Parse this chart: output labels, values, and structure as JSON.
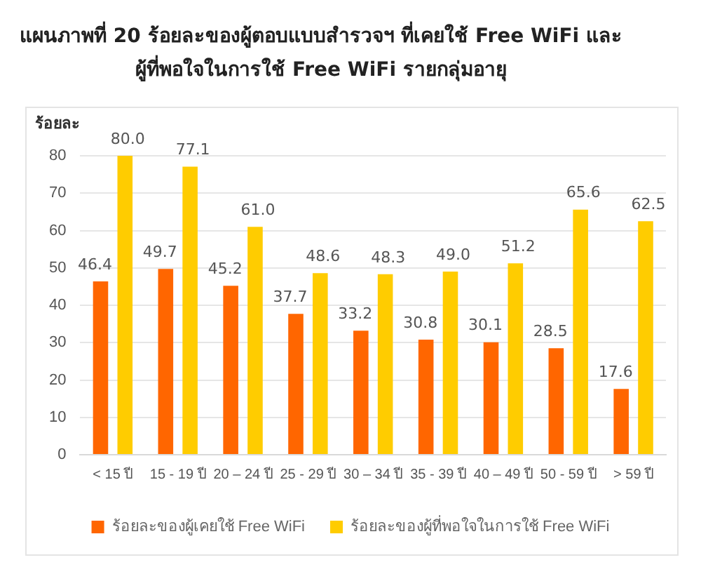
{
  "chart_data": {
    "type": "bar",
    "title": "แผนภาพที่  20 ร้อยละของผู้ตอบแบบสำรวจฯ ที่เคยใช้ Free WiFi และผู้ที่พอใจในการใช้ Free WiFi รายกลุ่มอายุ",
    "ylabel": "ร้อยละ",
    "categories": [
      "< 15 ปี",
      "15 - 19 ปี",
      "20 – 24 ปี",
      "25 - 29 ปี",
      "30 – 34 ปี",
      "35 - 39 ปี",
      "40 – 49 ปี",
      "50 - 59 ปี",
      "> 59 ปี"
    ],
    "series": [
      {
        "name": "ร้อยละของผู้เคยใช้ Free WiFi",
        "color": "#ff6600",
        "values": [
          46.4,
          49.7,
          45.2,
          37.7,
          33.2,
          30.8,
          30.1,
          28.5,
          17.6
        ],
        "value_labels": [
          "46.4",
          "49.7",
          "45.2",
          "37.7",
          "33.2",
          "30.8",
          "30.1",
          "28.5",
          "17.6"
        ]
      },
      {
        "name": "ร้อยละของผู้ที่พอใจในการใช้ Free WiFi",
        "color": "#ffcc00",
        "values": [
          80.0,
          77.1,
          61.0,
          48.6,
          48.3,
          49.0,
          51.2,
          65.6,
          62.5
        ],
        "value_labels": [
          "80.0",
          "77.1",
          "61.0",
          "48.6",
          "48.3",
          "49.0",
          "51.2",
          "65.6",
          "62.5"
        ]
      }
    ],
    "ylim": [
      0,
      80
    ],
    "yticks": [
      0,
      10,
      20,
      30,
      40,
      50,
      60,
      70,
      80
    ],
    "grid": "y",
    "legend": "bottom"
  }
}
